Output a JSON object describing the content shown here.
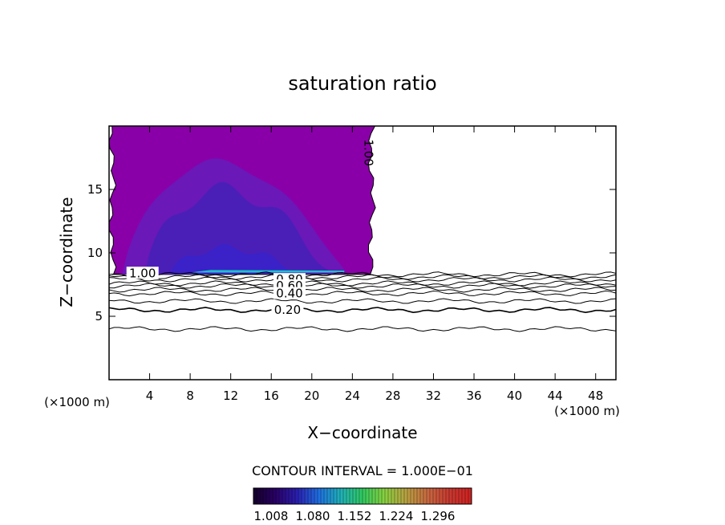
{
  "chart_data": {
    "type": "contour",
    "title": "saturation ratio",
    "xlabel": "X−coordinate",
    "ylabel": "Z−coordinate",
    "x_unit": "(×1000 m)",
    "y_unit": "(×1000 m)",
    "xlim": [
      0,
      50
    ],
    "ylim": [
      0,
      20
    ],
    "x_ticks": [
      4,
      8,
      12,
      16,
      20,
      24,
      28,
      32,
      36,
      40,
      44,
      48
    ],
    "y_ticks": [
      5,
      10,
      15
    ],
    "contour_labels": [
      {
        "text": "1.00",
        "x": 3.3,
        "z": 8.4
      },
      {
        "text": "1.00",
        "x": 25.6,
        "z": 17.9
      },
      {
        "text": "0.80",
        "x": 17.8,
        "z": 7.9
      },
      {
        "text": "0.60",
        "x": 17.8,
        "z": 7.4
      },
      {
        "text": "0.40",
        "x": 17.8,
        "z": 6.8
      },
      {
        "text": "0.20",
        "x": 17.6,
        "z": 5.5
      }
    ],
    "contour_levels_below": [
      {
        "level": 0.1,
        "z": 4.0
      },
      {
        "level": 0.2,
        "z": 5.5
      },
      {
        "level": 0.3,
        "z": 6.2
      },
      {
        "level": 0.4,
        "z": 6.8
      },
      {
        "level": 0.5,
        "z": 7.1
      },
      {
        "level": 0.6,
        "z": 7.4
      },
      {
        "level": 0.7,
        "z": 7.6
      },
      {
        "level": 0.8,
        "z": 7.9
      },
      {
        "level": 0.9,
        "z": 8.1
      },
      {
        "level": 1.0,
        "z": 8.3
      }
    ],
    "supersaturated_region": {
      "x_range": [
        0.3,
        25.9
      ],
      "z_range": [
        8.3,
        20
      ]
    },
    "contour_interval_text": "CONTOUR INTERVAL = 1.000E−01",
    "colorbar": {
      "tick_labels": [
        "1.008",
        "1.080",
        "1.152",
        "1.224",
        "1.296"
      ],
      "colors": [
        "#14002a",
        "#2a0066",
        "#2a1fb0",
        "#1f6fe0",
        "#1fb0b8",
        "#30c860",
        "#88d040",
        "#b8a040",
        "#c86840",
        "#c83830",
        "#d02020"
      ]
    }
  }
}
